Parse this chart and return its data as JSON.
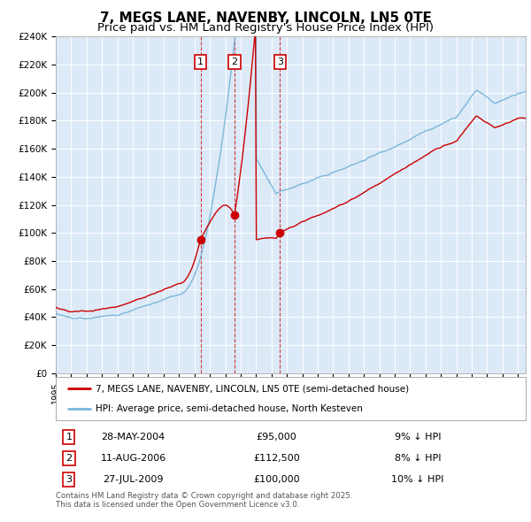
{
  "title": "7, MEGS LANE, NAVENBY, LINCOLN, LN5 0TE",
  "subtitle": "Price paid vs. HM Land Registry's House Price Index (HPI)",
  "title_fontsize": 11,
  "subtitle_fontsize": 9.5,
  "background_color": "#ffffff",
  "plot_bg_color": "#dce9f7",
  "grid_color": "#ffffff",
  "hpi_color": "#7ab8d9",
  "price_color": "#cc0000",
  "ylim": [
    0,
    240000
  ],
  "yticks": [
    0,
    20000,
    40000,
    60000,
    80000,
    100000,
    120000,
    140000,
    160000,
    180000,
    200000,
    220000,
    240000
  ],
  "transactions": [
    {
      "num": 1,
      "date": "28-MAY-2004",
      "price": 95000,
      "pct": "9%",
      "direction": "↓",
      "x_year": 2004.4
    },
    {
      "num": 2,
      "date": "11-AUG-2006",
      "price": 112500,
      "pct": "8%",
      "direction": "↓",
      "x_year": 2006.6
    },
    {
      "num": 3,
      "date": "27-JUL-2009",
      "price": 100000,
      "pct": "10%",
      "direction": "↓",
      "x_year": 2009.55
    }
  ],
  "legend_entries": [
    "7, MEGS LANE, NAVENBY, LINCOLN, LN5 0TE (semi-detached house)",
    "HPI: Average price, semi-detached house, North Kesteven"
  ],
  "footer_text": "Contains HM Land Registry data © Crown copyright and database right 2025.\nThis data is licensed under the Open Government Licence v3.0.",
  "xmin": 1995,
  "xmax": 2025.5
}
